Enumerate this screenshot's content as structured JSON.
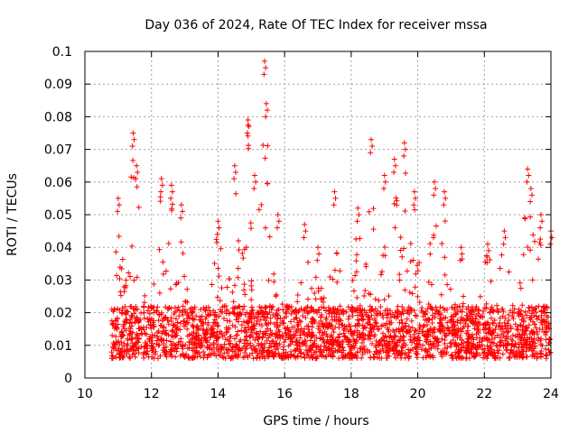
{
  "chart_data": {
    "type": "scatter",
    "title": "Day 036 of 2024, Rate Of TEC Index for receiver mssa",
    "xlabel": "GPS time / hours",
    "ylabel": "ROTI / TECUs",
    "xlim": [
      10,
      24
    ],
    "ylim": [
      0,
      0.1
    ],
    "xticks": [
      10,
      12,
      14,
      16,
      18,
      20,
      22,
      24
    ],
    "xtick_labels": [
      "10",
      "12",
      "14",
      "16",
      "18",
      "20",
      "22",
      "24"
    ],
    "yticks": [
      0,
      0.01,
      0.02,
      0.03,
      0.04,
      0.05,
      0.06,
      0.07,
      0.08,
      0.09,
      0.1
    ],
    "ytick_labels": [
      "0",
      "0.01",
      "0.02",
      "0.03",
      "0.04",
      "0.05",
      "0.06",
      "0.07",
      "0.08",
      "0.09",
      "0.1"
    ],
    "grid": true,
    "marker": "+",
    "color": "#ff0000",
    "x_start": 10.8,
    "x_end": 24.0,
    "baseline_typical": 0.012,
    "peaks": [
      {
        "x": 11.0,
        "y": 0.055
      },
      {
        "x": 11.45,
        "y": 0.075
      },
      {
        "x": 11.55,
        "y": 0.065
      },
      {
        "x": 12.3,
        "y": 0.061
      },
      {
        "x": 12.6,
        "y": 0.059
      },
      {
        "x": 12.9,
        "y": 0.053
      },
      {
        "x": 14.0,
        "y": 0.048
      },
      {
        "x": 14.5,
        "y": 0.065
      },
      {
        "x": 14.9,
        "y": 0.079
      },
      {
        "x": 15.1,
        "y": 0.062
      },
      {
        "x": 15.4,
        "y": 0.097
      },
      {
        "x": 15.45,
        "y": 0.084
      },
      {
        "x": 15.8,
        "y": 0.05
      },
      {
        "x": 16.6,
        "y": 0.047
      },
      {
        "x": 17.0,
        "y": 0.04
      },
      {
        "x": 17.5,
        "y": 0.057
      },
      {
        "x": 18.2,
        "y": 0.052
      },
      {
        "x": 18.6,
        "y": 0.073
      },
      {
        "x": 19.0,
        "y": 0.062
      },
      {
        "x": 19.3,
        "y": 0.067
      },
      {
        "x": 19.6,
        "y": 0.072
      },
      {
        "x": 19.9,
        "y": 0.057
      },
      {
        "x": 20.5,
        "y": 0.06
      },
      {
        "x": 20.8,
        "y": 0.057
      },
      {
        "x": 21.3,
        "y": 0.04
      },
      {
        "x": 22.1,
        "y": 0.041
      },
      {
        "x": 22.6,
        "y": 0.045
      },
      {
        "x": 23.3,
        "y": 0.064
      },
      {
        "x": 23.4,
        "y": 0.058
      },
      {
        "x": 23.7,
        "y": 0.05
      },
      {
        "x": 24.0,
        "y": 0.045
      }
    ]
  }
}
